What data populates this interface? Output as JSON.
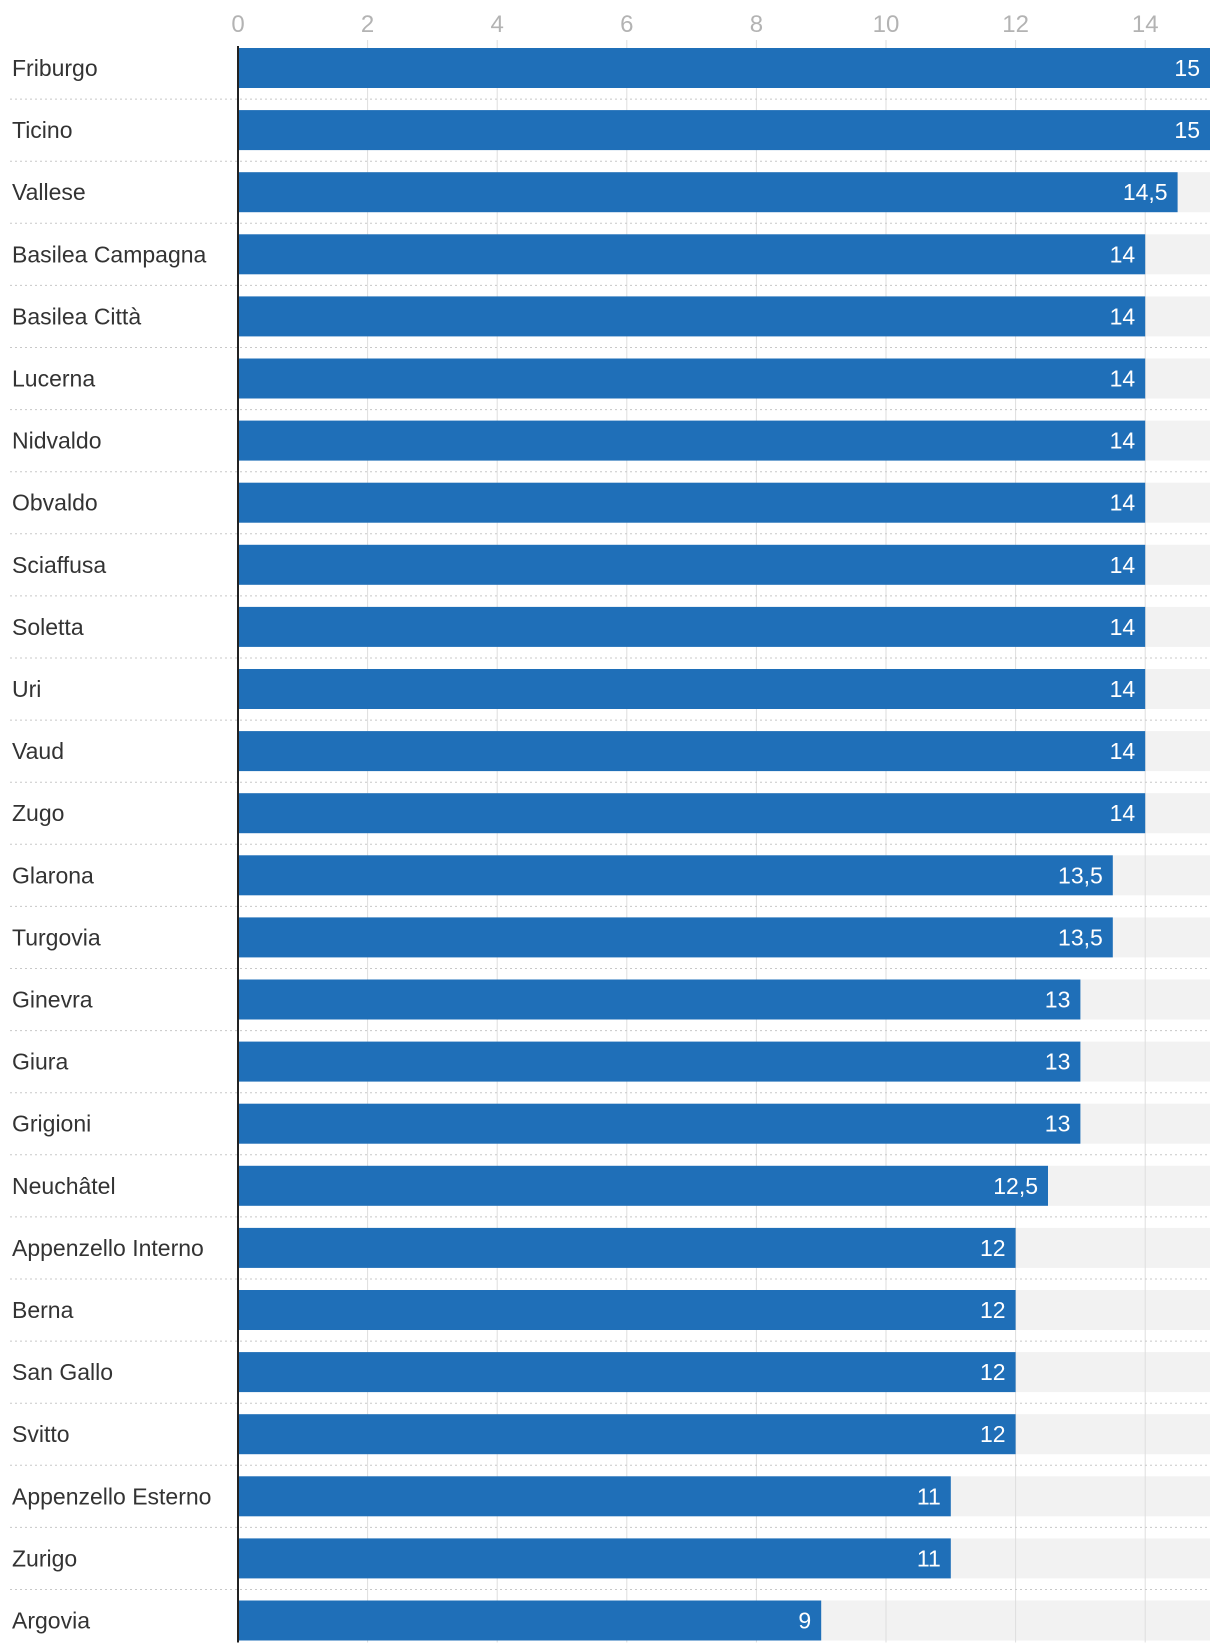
{
  "chart_data": {
    "type": "bar",
    "orientation": "horizontal",
    "categories": [
      "Friburgo",
      "Ticino",
      "Vallese",
      "Basilea Campagna",
      "Basilea Città",
      "Lucerna",
      "Nidvaldo",
      "Obvaldo",
      "Sciaffusa",
      "Soletta",
      "Uri",
      "Vaud",
      "Zugo",
      "Glarona",
      "Turgovia",
      "Ginevra",
      "Giura",
      "Grigioni",
      "Neuchâtel",
      "Appenzello Interno",
      "Berna",
      "San Gallo",
      "Svitto",
      "Appenzello Esterno",
      "Zurigo",
      "Argovia"
    ],
    "values": [
      15,
      15,
      14.5,
      14,
      14,
      14,
      14,
      14,
      14,
      14,
      14,
      14,
      14,
      13.5,
      13.5,
      13,
      13,
      13,
      12.5,
      12,
      12,
      12,
      12,
      11,
      11,
      9
    ],
    "value_labels": [
      "15",
      "15",
      "14,5",
      "14",
      "14",
      "14",
      "14",
      "14",
      "14",
      "14",
      "14",
      "14",
      "14",
      "13,5",
      "13,5",
      "13",
      "13",
      "13",
      "12,5",
      "12",
      "12",
      "12",
      "12",
      "11",
      "11",
      "9"
    ],
    "x_ticks": [
      0,
      2,
      4,
      6,
      8,
      10,
      12,
      14
    ],
    "x_tick_labels": [
      "0",
      "2",
      "4",
      "6",
      "8",
      "10",
      "12",
      "14"
    ],
    "xlim": [
      0,
      15
    ],
    "axis_position": "top",
    "grid": true,
    "title": "",
    "xlabel": "",
    "ylabel": "",
    "colors": {
      "bar": "#1f6fb8",
      "bar_background": "#f2f2f2",
      "grid": "#dedede",
      "tick_text": "#b3b3b3",
      "category_text": "#333333",
      "value_text": "#ffffff",
      "separator": "#c8c8c8",
      "axis_line": "#222222"
    }
  }
}
